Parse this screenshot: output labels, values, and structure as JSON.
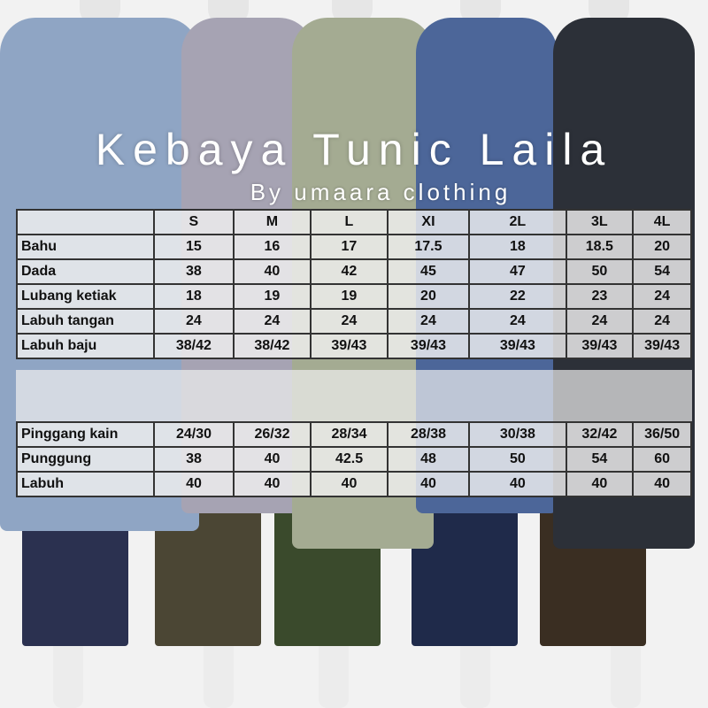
{
  "title": "Kebaya Tunic Laila",
  "subtitle": "By umaara clothing",
  "colors": {
    "outfit_1": "#8fa5c4",
    "outfit_2": "#a6a3b3",
    "outfit_3": "#a4ab92",
    "outfit_4": "#4c6699",
    "outfit_5": "#2c3038",
    "table_border": "#333333"
  },
  "size_headers": [
    "S",
    "M",
    "L",
    "XI",
    "2L",
    "3L",
    "4L"
  ],
  "top_table": [
    {
      "label": "Bahu",
      "values": [
        "15",
        "16",
        "17",
        "17.5",
        "18",
        "18.5",
        "20"
      ]
    },
    {
      "label": "Dada",
      "values": [
        "38",
        "40",
        "42",
        "45",
        "47",
        "50",
        "54"
      ]
    },
    {
      "label": "Lubang ketiak",
      "values": [
        "18",
        "19",
        "19",
        "20",
        "22",
        "23",
        "24"
      ]
    },
    {
      "label": "Labuh tangan",
      "values": [
        "24",
        "24",
        "24",
        "24",
        "24",
        "24",
        "24"
      ]
    },
    {
      "label": "Labuh baju",
      "values": [
        "38/42",
        "38/42",
        "39/43",
        "39/43",
        "39/43",
        "39/43",
        "39/43"
      ]
    }
  ],
  "bottom_table": [
    {
      "label": "Pinggang kain",
      "values": [
        "24/30",
        "26/32",
        "28/34",
        "28/38",
        "30/38",
        "32/42",
        "36/50"
      ]
    },
    {
      "label": "Punggung",
      "values": [
        "38",
        "40",
        "42.5",
        "48",
        "50",
        "54",
        "60"
      ]
    },
    {
      "label": "Labuh",
      "values": [
        "40",
        "40",
        "40",
        "40",
        "40",
        "40",
        "40"
      ]
    }
  ]
}
